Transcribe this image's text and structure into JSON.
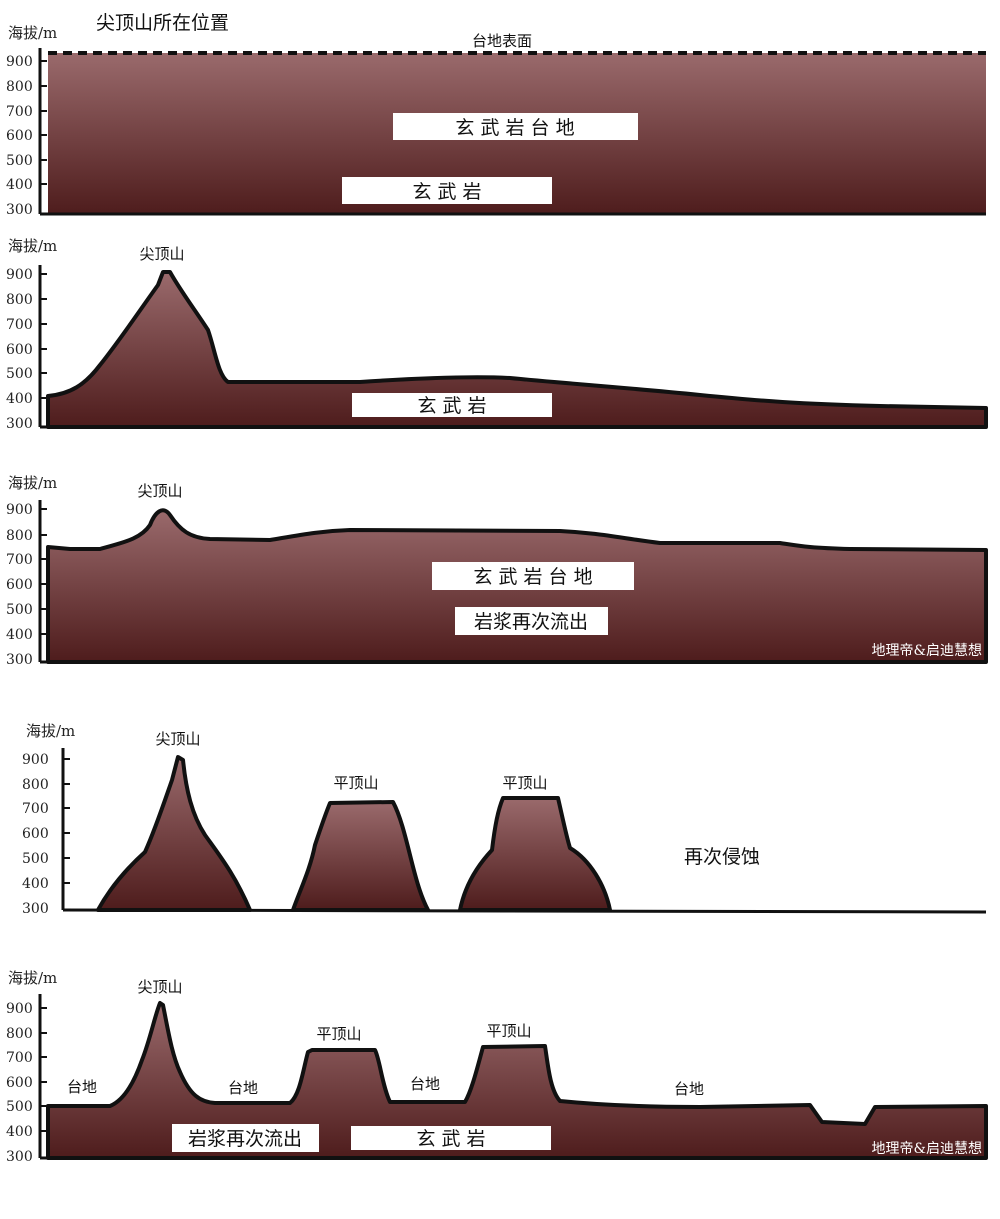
{
  "title": "尖顶山所在位置",
  "y_axis": {
    "label": "海拔/m",
    "ticks": [
      900,
      800,
      700,
      600,
      500,
      400,
      300
    ]
  },
  "watermark": "地理帝&启迪慧想",
  "colors": {
    "rock_top": "#9a6a6c",
    "rock_bottom": "#4e1c1c",
    "outline": "#111111"
  },
  "panels": [
    {
      "surface_label": "台地表面",
      "labels": {
        "plateau": "玄 武 岩 台 地",
        "basalt": "玄 武 岩"
      }
    },
    {
      "peak_label": "尖顶山",
      "labels": {
        "basalt": "玄 武 岩"
      }
    },
    {
      "peak_label": "尖顶山",
      "labels": {
        "plateau": "玄 武 岩 台 地",
        "magma": "岩浆再次流出"
      },
      "watermark": "地理帝&启迪慧想"
    },
    {
      "peak_label": "尖顶山",
      "mesa_labels": [
        "平顶山",
        "平顶山"
      ],
      "note": "再次侵蚀"
    },
    {
      "peak_label": "尖顶山",
      "mesa_labels": [
        "平顶山",
        "平顶山"
      ],
      "tableland_labels": [
        "台地",
        "台地",
        "台地",
        "台地"
      ],
      "labels": {
        "magma": "岩浆再次流出",
        "basalt": "玄 武 岩"
      },
      "watermark": "地理帝&启迪慧想"
    }
  ]
}
